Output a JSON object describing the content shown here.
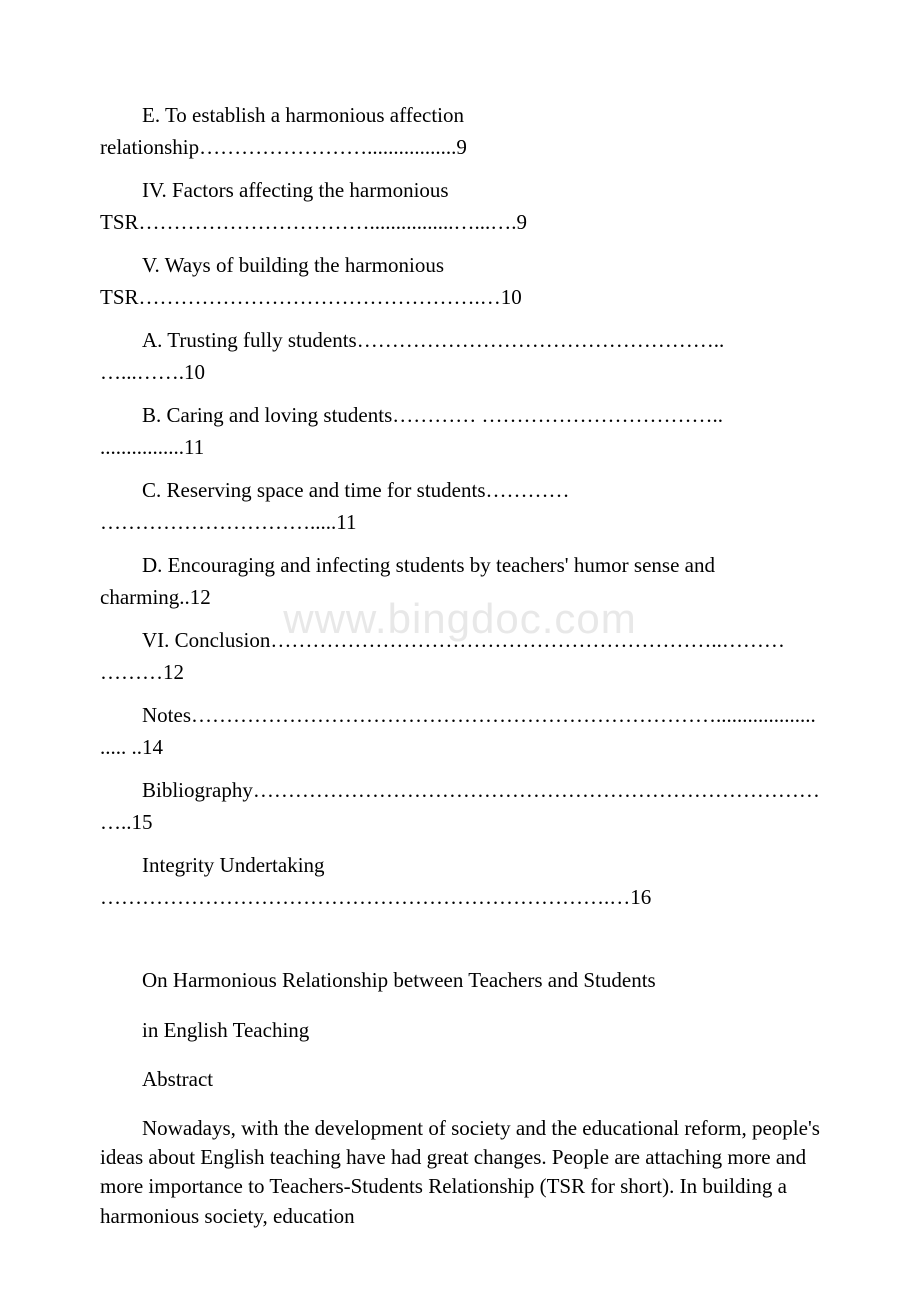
{
  "watermark": "www.bingdoc.com",
  "toc": {
    "e_item": "E. To establish a harmonious affection relationship…………………….................9",
    "iv_item": "IV. Factors affecting the harmonious TSR……………………………................…...….9",
    "v_item": "V. Ways of building the harmonious TSR………………………………………….…10",
    "a_item": "A. Trusting fully students…………………………………………….. …...…….10",
    "b_item": "B. Caring and loving students………… …………………………….. ................11",
    "c_item": "C. Reserving space and time for students………… ………………………….....11",
    "d_item": "D. Encouraging and infecting students by teachers' humor sense and charming..12",
    "vi_item": "VI. Conclusion………………………………………………………..……… ………12",
    "notes_item": "Notes…………………………………………………………………........................ ..14",
    "bibliography_item": "Bibliography…………………………………………………………………………..15",
    "integrity_item": "Integrity Undertaking ……………………………………………………………….…16"
  },
  "paper": {
    "title": "On Harmonious Relationship between Teachers and Students",
    "subtitle": "in English Teaching",
    "abstract_heading": "Abstract",
    "abstract_body": "Nowadays, with the development of society and the educational reform, people's ideas about English teaching have had great changes. People are attaching more and more importance to Teachers-Students Relationship (TSR for short). In building a harmonious society, education"
  },
  "colors": {
    "text": "#000000",
    "background": "#ffffff",
    "watermark": "#e8e8e8"
  },
  "typography": {
    "font_family": "Times New Roman",
    "body_fontsize": 21,
    "watermark_fontsize": 42
  }
}
